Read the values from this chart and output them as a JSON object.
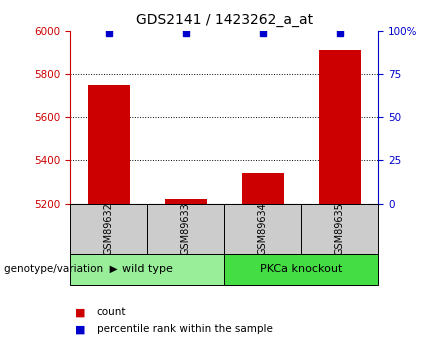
{
  "title": "GDS2141 / 1423262_a_at",
  "samples": [
    "GSM89632",
    "GSM89633",
    "GSM89634",
    "GSM89635"
  ],
  "count_values": [
    5750,
    5222,
    5340,
    5910
  ],
  "percentile_values": [
    99,
    99,
    99,
    99
  ],
  "baseline": 5200,
  "ylim_left": [
    5200,
    6000
  ],
  "ylim_right": [
    0,
    100
  ],
  "yticks_left": [
    5200,
    5400,
    5600,
    5800,
    6000
  ],
  "yticks_right": [
    0,
    25,
    50,
    75,
    100
  ],
  "ytick_labels_right": [
    "0",
    "25",
    "50",
    "75",
    "100%"
  ],
  "grid_values": [
    5400,
    5600,
    5800
  ],
  "bar_color": "#cc0000",
  "marker_color": "#0000cc",
  "left_axis_color": "#cc0000",
  "right_axis_color": "#0000cc",
  "groups": [
    {
      "label": "wild type",
      "samples": [
        0,
        1
      ],
      "color": "#99ee99"
    },
    {
      "label": "PKCa knockout",
      "samples": [
        2,
        3
      ],
      "color": "#44dd44"
    }
  ],
  "group_label_text": "genotype/variation",
  "sample_label_area_color": "#cccccc",
  "legend_count_label": "count",
  "legend_pct_label": "percentile rank within the sample",
  "bar_width": 0.55
}
